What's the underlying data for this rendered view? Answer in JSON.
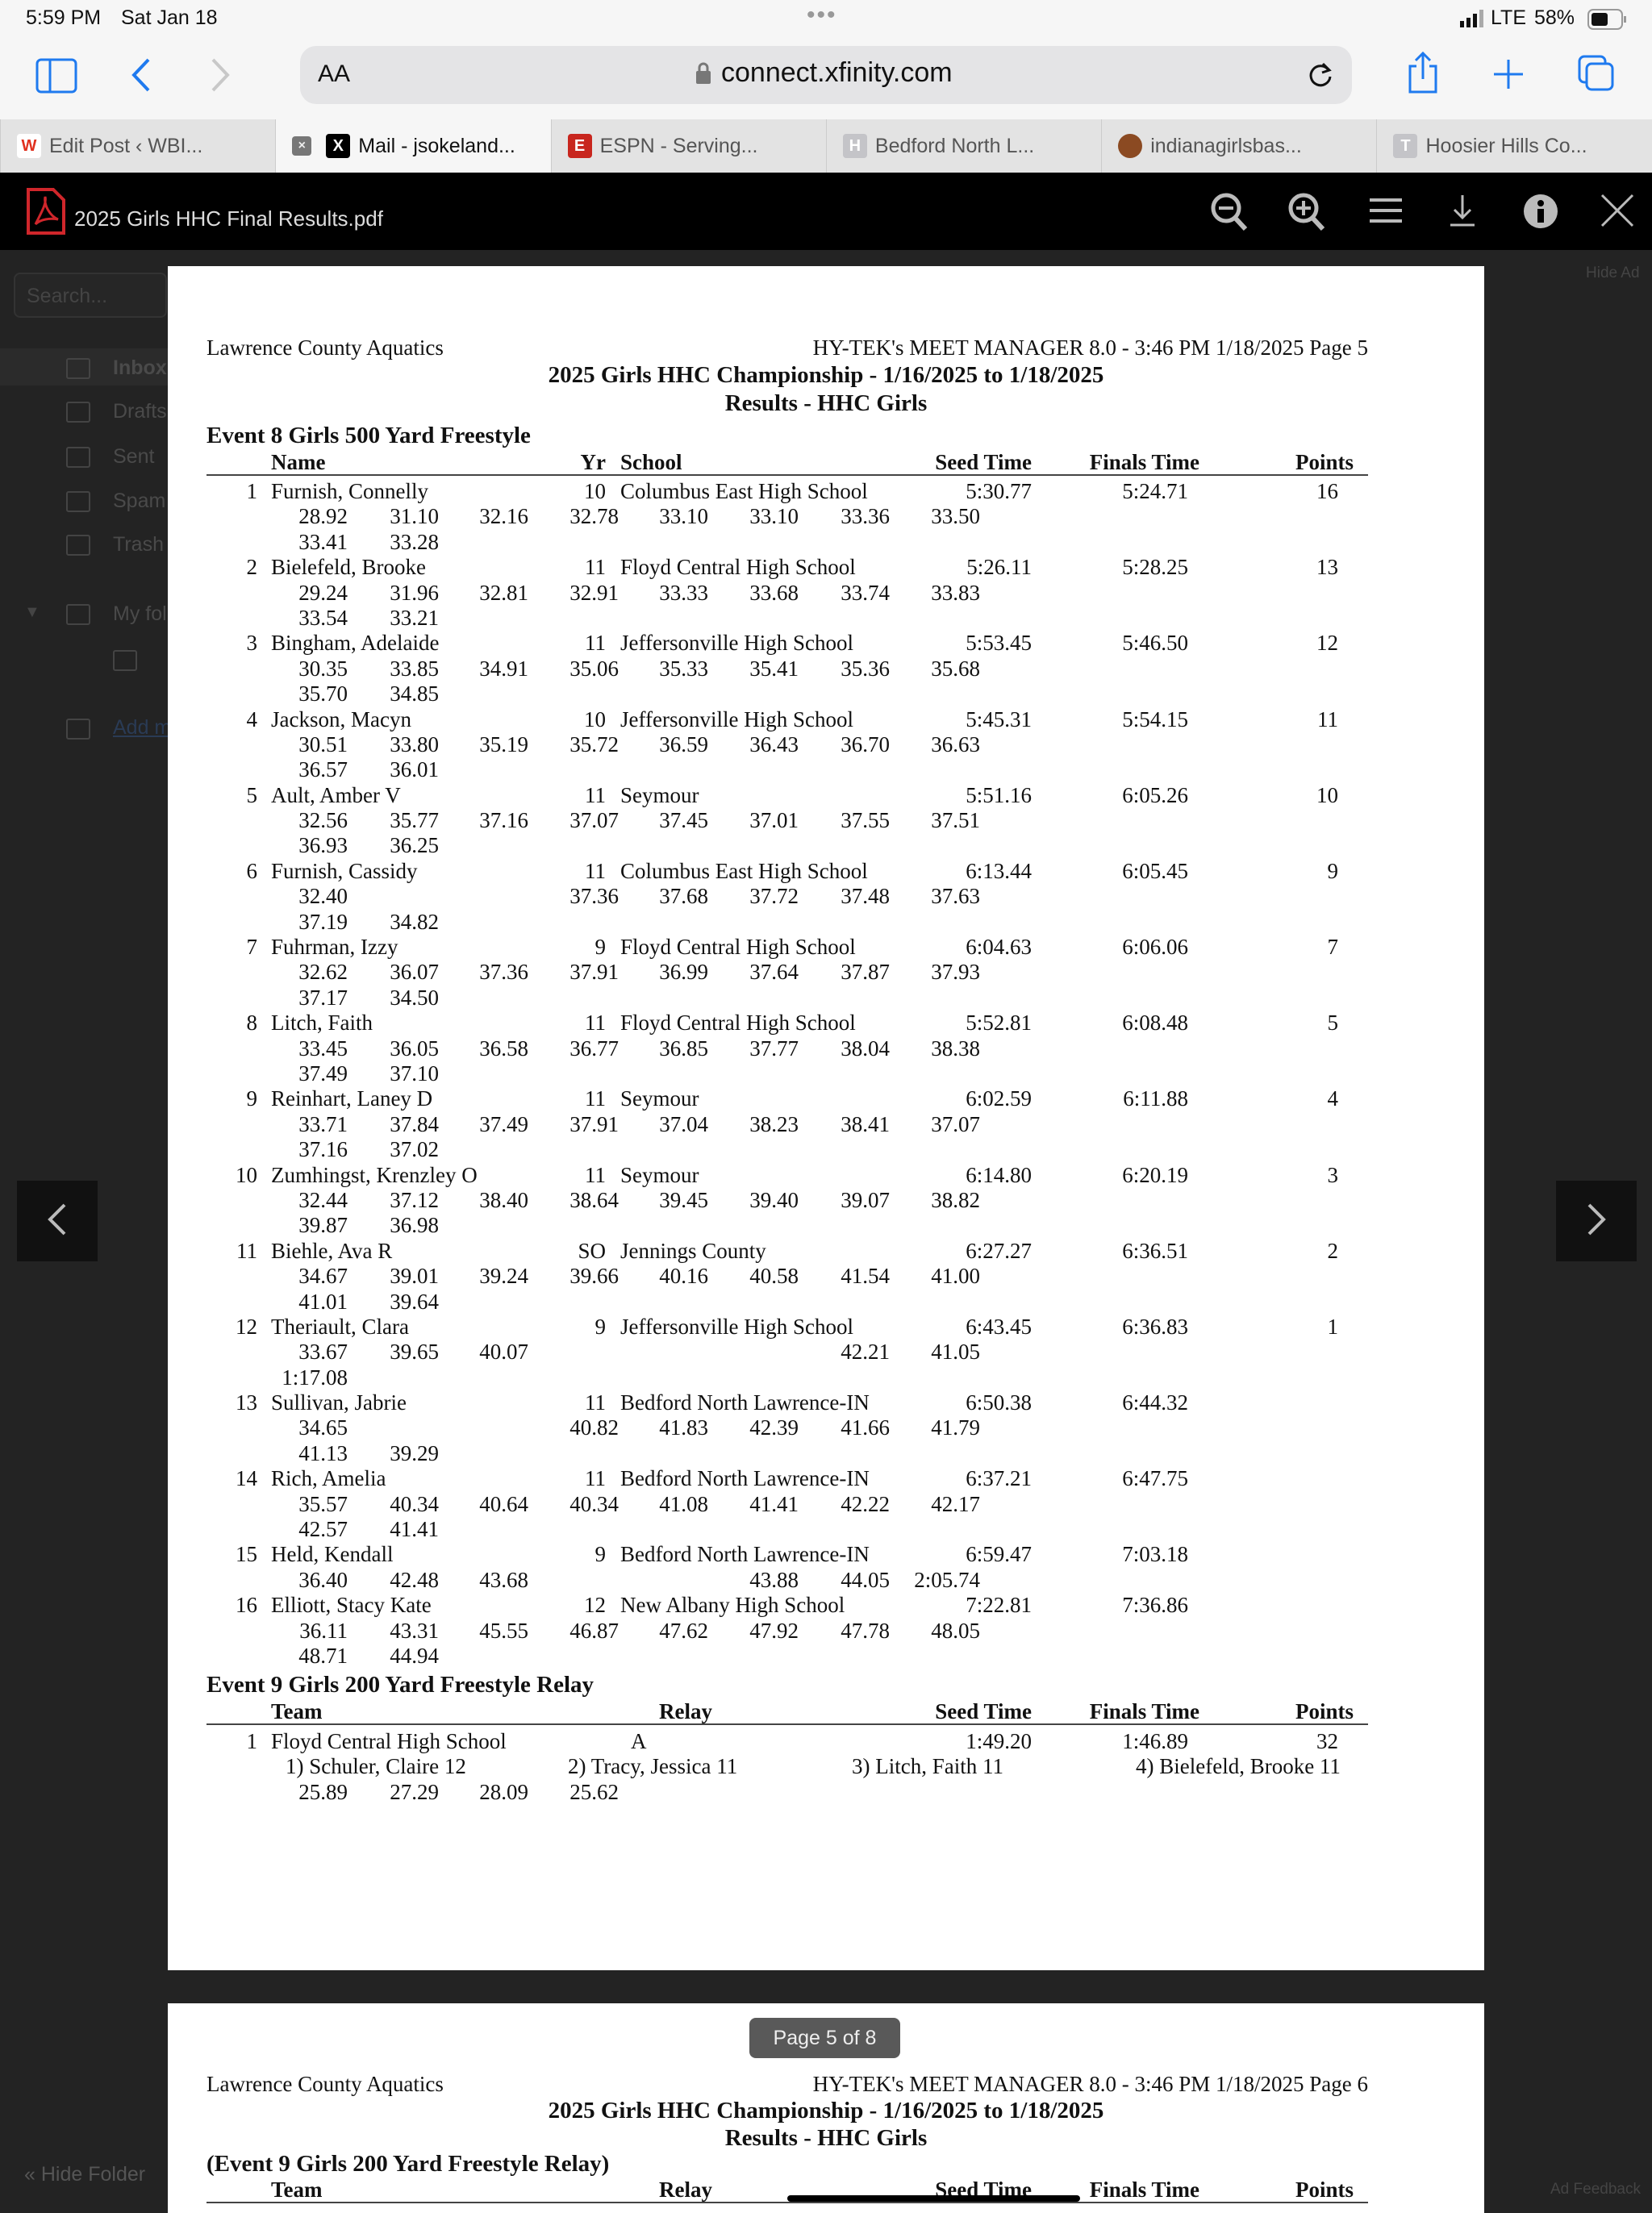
{
  "status_bar": {
    "time": "5:59 PM",
    "date": "Sat Jan 18",
    "network": "LTE",
    "battery": "58%"
  },
  "browser": {
    "reader_label": "AA",
    "url": "connect.xfinity.com",
    "tabs": [
      {
        "label": "Edit Post ‹ WBI...",
        "icon": "W",
        "color": "#e0301e",
        "active": false
      },
      {
        "label": "Mail - jsokeland...",
        "icon": "X",
        "color": "#000000",
        "active": true
      },
      {
        "label": "ESPN - Serving...",
        "icon": "E",
        "color": "#c8261e",
        "active": false
      },
      {
        "label": "Bedford North L...",
        "icon": "H",
        "color": "#c4c4c8",
        "active": false
      },
      {
        "label": "indianagirlsbas...",
        "icon": "ball",
        "color": "#8b4a22",
        "active": false
      },
      {
        "label": "Hoosier Hills Co...",
        "icon": "T",
        "color": "#c4c4c8",
        "active": false
      }
    ]
  },
  "pdf_viewer": {
    "filename": "2025 Girls HHC Final Results.pdf",
    "page_indicator": "Page 5 of 8"
  },
  "mail_background": {
    "search_placeholder": "Search...",
    "folders": [
      "Inbox",
      "Drafts",
      "Sent",
      "Spam",
      "Trash"
    ],
    "my_folders": "My fol",
    "add": "Add m",
    "hide_folders": "« Hide Folder",
    "hide_ad": "Hide Ad",
    "ad_feedback": "Ad Feedback"
  },
  "page5": {
    "org": "Lawrence County Aquatics",
    "software": "HY-TEK's MEET MANAGER 8.0 - 3:46 PM  1/18/2025  Page 5",
    "title": "2025 Girls HHC Championship - 1/16/2025 to 1/18/2025",
    "subtitle": "Results - HHC Girls",
    "event8": {
      "title": "Event 8  Girls 500 Yard Freestyle",
      "headers": {
        "name": "Name",
        "yr": "Yr",
        "school": "School",
        "seed": "Seed Time",
        "finals": "Finals Time",
        "points": "Points"
      },
      "results": [
        {
          "place": "1",
          "name": "Furnish, Connelly",
          "yr": "10",
          "school": "Columbus East High School",
          "seed": "5:30.77",
          "finals": "5:24.71",
          "points": "16",
          "splits": [
            [
              "28.92",
              "31.10",
              "32.16",
              "32.78",
              "33.10",
              "33.10",
              "33.36",
              "33.50"
            ],
            [
              "33.41",
              "33.28"
            ]
          ]
        },
        {
          "place": "2",
          "name": "Bielefeld, Brooke",
          "yr": "11",
          "school": "Floyd Central High School",
          "seed": "5:26.11",
          "finals": "5:28.25",
          "points": "13",
          "splits": [
            [
              "29.24",
              "31.96",
              "32.81",
              "32.91",
              "33.33",
              "33.68",
              "33.74",
              "33.83"
            ],
            [
              "33.54",
              "33.21"
            ]
          ]
        },
        {
          "place": "3",
          "name": "Bingham, Adelaide",
          "yr": "11",
          "school": "Jeffersonville High School",
          "seed": "5:53.45",
          "finals": "5:46.50",
          "points": "12",
          "splits": [
            [
              "30.35",
              "33.85",
              "34.91",
              "35.06",
              "35.33",
              "35.41",
              "35.36",
              "35.68"
            ],
            [
              "35.70",
              "34.85"
            ]
          ]
        },
        {
          "place": "4",
          "name": "Jackson, Macyn",
          "yr": "10",
          "school": "Jeffersonville High School",
          "seed": "5:45.31",
          "finals": "5:54.15",
          "points": "11",
          "splits": [
            [
              "30.51",
              "33.80",
              "35.19",
              "35.72",
              "36.59",
              "36.43",
              "36.70",
              "36.63"
            ],
            [
              "36.57",
              "36.01"
            ]
          ]
        },
        {
          "place": "5",
          "name": "Ault, Amber V",
          "yr": "11",
          "school": "Seymour",
          "seed": "5:51.16",
          "finals": "6:05.26",
          "points": "10",
          "splits": [
            [
              "32.56",
              "35.77",
              "37.16",
              "37.07",
              "37.45",
              "37.01",
              "37.55",
              "37.51"
            ],
            [
              "36.93",
              "36.25"
            ]
          ]
        },
        {
          "place": "6",
          "name": "Furnish, Cassidy",
          "yr": "11",
          "school": "Columbus East High School",
          "seed": "6:13.44",
          "finals": "6:05.45",
          "points": "9",
          "splits": [
            [
              "32.40",
              "",
              "",
              "37.36",
              "37.68",
              "37.72",
              "37.48",
              "37.63"
            ],
            [
              "37.19",
              "34.82"
            ]
          ]
        },
        {
          "place": "7",
          "name": "Fuhrman, Izzy",
          "yr": "9",
          "school": "Floyd Central High School",
          "seed": "6:04.63",
          "finals": "6:06.06",
          "points": "7",
          "splits": [
            [
              "32.62",
              "36.07",
              "37.36",
              "37.91",
              "36.99",
              "37.64",
              "37.87",
              "37.93"
            ],
            [
              "37.17",
              "34.50"
            ]
          ]
        },
        {
          "place": "8",
          "name": "Litch, Faith",
          "yr": "11",
          "school": "Floyd Central High School",
          "seed": "5:52.81",
          "finals": "6:08.48",
          "points": "5",
          "splits": [
            [
              "33.45",
              "36.05",
              "36.58",
              "36.77",
              "36.85",
              "37.77",
              "38.04",
              "38.38"
            ],
            [
              "37.49",
              "37.10"
            ]
          ]
        },
        {
          "place": "9",
          "name": "Reinhart, Laney D",
          "yr": "11",
          "school": "Seymour",
          "seed": "6:02.59",
          "finals": "6:11.88",
          "points": "4",
          "splits": [
            [
              "33.71",
              "37.84",
              "37.49",
              "37.91",
              "37.04",
              "38.23",
              "38.41",
              "37.07"
            ],
            [
              "37.16",
              "37.02"
            ]
          ]
        },
        {
          "place": "10",
          "name": "Zumhingst, Krenzley O",
          "yr": "11",
          "school": "Seymour",
          "seed": "6:14.80",
          "finals": "6:20.19",
          "points": "3",
          "splits": [
            [
              "32.44",
              "37.12",
              "38.40",
              "38.64",
              "39.45",
              "39.40",
              "39.07",
              "38.82"
            ],
            [
              "39.87",
              "36.98"
            ]
          ]
        },
        {
          "place": "11",
          "name": "Biehle, Ava R",
          "yr": "SO",
          "school": "Jennings County",
          "seed": "6:27.27",
          "finals": "6:36.51",
          "points": "2",
          "splits": [
            [
              "34.67",
              "39.01",
              "39.24",
              "39.66",
              "40.16",
              "40.58",
              "41.54",
              "41.00"
            ],
            [
              "41.01",
              "39.64"
            ]
          ]
        },
        {
          "place": "12",
          "name": "Theriault, Clara",
          "yr": "9",
          "school": "Jeffersonville High School",
          "seed": "6:43.45",
          "finals": "6:36.83",
          "points": "1",
          "splits": [
            [
              "33.67",
              "39.65",
              "40.07",
              "",
              "",
              "",
              "42.21",
              "41.05"
            ],
            [
              "1:17.08"
            ]
          ]
        },
        {
          "place": "13",
          "name": "Sullivan, Jabrie",
          "yr": "11",
          "school": "Bedford North Lawrence-IN",
          "seed": "6:50.38",
          "finals": "6:44.32",
          "points": "",
          "splits": [
            [
              "34.65",
              "",
              "",
              "40.82",
              "41.83",
              "42.39",
              "41.66",
              "41.79"
            ],
            [
              "41.13",
              "39.29"
            ]
          ]
        },
        {
          "place": "14",
          "name": "Rich, Amelia",
          "yr": "11",
          "school": "Bedford North Lawrence-IN",
          "seed": "6:37.21",
          "finals": "6:47.75",
          "points": "",
          "splits": [
            [
              "35.57",
              "40.34",
              "40.64",
              "40.34",
              "41.08",
              "41.41",
              "42.22",
              "42.17"
            ],
            [
              "42.57",
              "41.41"
            ]
          ]
        },
        {
          "place": "15",
          "name": "Held, Kendall",
          "yr": "9",
          "school": "Bedford North Lawrence-IN",
          "seed": "6:59.47",
          "finals": "7:03.18",
          "points": "",
          "splits": [
            [
              "36.40",
              "42.48",
              "43.68",
              "",
              "",
              "43.88",
              "44.05",
              "2:05.74"
            ]
          ]
        },
        {
          "place": "16",
          "name": "Elliott, Stacy Kate",
          "yr": "12",
          "school": "New Albany High School",
          "seed": "7:22.81",
          "finals": "7:36.86",
          "points": "",
          "splits": [
            [
              "36.11",
              "43.31",
              "45.55",
              "46.87",
              "47.62",
              "47.92",
              "47.78",
              "48.05"
            ],
            [
              "48.71",
              "44.94"
            ]
          ]
        }
      ]
    },
    "event9": {
      "title": "Event 9  Girls 200 Yard Freestyle Relay",
      "headers": {
        "team": "Team",
        "relay": "Relay",
        "seed": "Seed Time",
        "finals": "Finals Time",
        "points": "Points"
      },
      "results": [
        {
          "place": "1",
          "team": "Floyd Central High School",
          "relay": "A",
          "seed": "1:49.20",
          "finals": "1:46.89",
          "points": "32",
          "swimmers": [
            "1) Schuler, Claire 12",
            "2) Tracy, Jessica 11",
            "3) Litch, Faith 11",
            "4) Bielefeld, Brooke 11"
          ],
          "splits": [
            "25.89",
            "27.29",
            "28.09",
            "25.62"
          ]
        }
      ]
    }
  },
  "page6": {
    "org": "Lawrence County Aquatics",
    "software": "HY-TEK's MEET MANAGER 8.0 - 3:46 PM  1/18/2025  Page 6",
    "title": "2025 Girls HHC Championship - 1/16/2025 to 1/18/2025",
    "subtitle": "Results - HHC Girls",
    "event_cont": "(Event 9  Girls 200 Yard Freestyle Relay)",
    "headers": {
      "team": "Team",
      "relay": "Relay",
      "seed": "Seed Time",
      "finals": "Finals Time",
      "points": "Points"
    }
  }
}
